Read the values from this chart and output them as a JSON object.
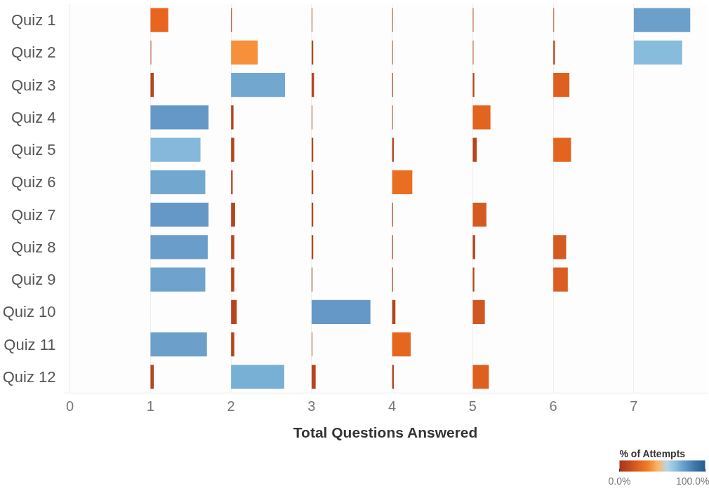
{
  "chart_data": {
    "type": "bar",
    "orientation": "horizontal",
    "xlabel": "Total Questions Answered",
    "categories": [
      "Quiz 1",
      "Quiz 2",
      "Quiz 3",
      "Quiz 4",
      "Quiz 5",
      "Quiz 6",
      "Quiz 7",
      "Quiz 8",
      "Quiz 9",
      "Quiz 10",
      "Quiz 11",
      "Quiz 12"
    ],
    "xlim": [
      -0.08,
      7.92
    ],
    "xticks": [
      0,
      1,
      2,
      3,
      4,
      5,
      6,
      7
    ],
    "grid": "x",
    "clabel": "% of Attempts",
    "clim": [
      0,
      100
    ],
    "cticks": [
      {
        "value": 0,
        "label": "0.0%"
      },
      {
        "value": 100,
        "label": "100.0%"
      }
    ],
    "series": [
      {
        "base": [
          1,
          1,
          1,
          1,
          1,
          1,
          1,
          1,
          1,
          null,
          1,
          1
        ],
        "values": [
          0.22,
          0.01,
          0.04,
          0.72,
          0.62,
          0.68,
          0.72,
          0.71,
          0.68,
          null,
          0.7,
          0.04
        ],
        "colors": [
          "#e8641f",
          "#c46a4c",
          "#b5451f",
          "#6598c6",
          "#86b8db",
          "#72a7d0",
          "#6598c6",
          "#6a9dc9",
          "#6fa3cd",
          null,
          "#6ca0cb",
          "#b5451f"
        ]
      },
      {
        "base": [
          2,
          2,
          2,
          2,
          2,
          2,
          2,
          2,
          2,
          2,
          2,
          2
        ],
        "values": [
          0.01,
          0.33,
          0.67,
          0.03,
          0.04,
          0.02,
          0.05,
          0.04,
          0.04,
          0.07,
          0.04,
          0.66
        ],
        "colors": [
          "#b5451f",
          "#f6903a",
          "#72a7d0",
          "#b5451f",
          "#b5451f",
          "#b5451f",
          "#b5451f",
          "#b5451f",
          "#b5451f",
          "#b5451f",
          "#b5451f",
          "#78afd5"
        ]
      },
      {
        "base": [
          3,
          3,
          3,
          3,
          3,
          3,
          3,
          3,
          3,
          3,
          3,
          3
        ],
        "values": [
          0.01,
          0.02,
          0.03,
          0.01,
          0.02,
          0.02,
          0.02,
          0.02,
          0.01,
          0.73,
          0.01,
          0.05
        ],
        "colors": [
          "#c46a4c",
          "#b5451f",
          "#b5451f",
          "#c46a4c",
          "#b5451f",
          "#b5451f",
          "#b5451f",
          "#b5451f",
          "#b5451f",
          "#6598c6",
          "#c46a4c",
          "#b5451f"
        ]
      },
      {
        "base": [
          4,
          4,
          4,
          4,
          4,
          4,
          4,
          4,
          4,
          4,
          4,
          4
        ],
        "values": [
          0.01,
          0.01,
          0.01,
          0.01,
          0.02,
          0.25,
          0.01,
          0.01,
          0.01,
          0.04,
          0.23,
          0.02
        ],
        "colors": [
          "#c46a4c",
          "#c46a4c",
          "#b5451f",
          "#c46a4c",
          "#b5451f",
          "#ea6e22",
          "#b5451f",
          "#b5451f",
          "#b5451f",
          "#b5451f",
          "#e5661f",
          "#b5451f"
        ]
      },
      {
        "base": [
          5,
          5,
          5,
          5,
          5,
          null,
          5,
          5,
          5,
          5,
          null,
          5
        ],
        "values": [
          0.01,
          0.01,
          0.02,
          0.22,
          0.05,
          null,
          0.17,
          0.03,
          0.02,
          0.15,
          null,
          0.2
        ],
        "colors": [
          "#c46a4c",
          "#c46a4c",
          "#b5451f",
          "#e3641f",
          "#b5451f",
          null,
          "#d45a22",
          "#b5451f",
          "#b5451f",
          "#cf5723",
          null,
          "#de6020"
        ]
      },
      {
        "base": [
          6,
          6,
          6,
          null,
          6,
          null,
          null,
          6,
          6,
          null,
          null,
          null
        ],
        "values": [
          0.01,
          0.02,
          0.2,
          null,
          0.22,
          null,
          null,
          0.16,
          0.18,
          null,
          null,
          null
        ],
        "colors": [
          "#c46a4c",
          "#b5451f",
          "#de6020",
          null,
          "#e3641f",
          null,
          null,
          "#d45a22",
          "#da5e21",
          null,
          null,
          null
        ]
      },
      {
        "base": [
          7,
          7,
          null,
          null,
          null,
          null,
          null,
          null,
          null,
          null,
          null,
          null
        ],
        "values": [
          0.7,
          0.6,
          null,
          null,
          null,
          null,
          null,
          null,
          null,
          null,
          null,
          null
        ],
        "colors": [
          "#6ca0cb",
          "#88bcdc",
          null,
          null,
          null,
          null,
          null,
          null,
          null,
          null,
          null,
          null
        ]
      }
    ]
  }
}
